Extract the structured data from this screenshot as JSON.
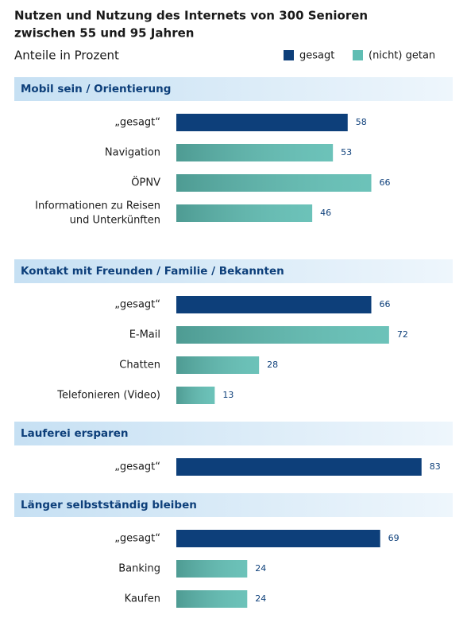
{
  "chart_data": {
    "type": "bar",
    "title": [
      "Nutzen und Nutzung des Internets von 300 Senioren",
      "zwischen 55 und 95 Jahren"
    ],
    "subtitle": "Anteile in Prozent",
    "legend": [
      {
        "name": "gesagt",
        "color": "#0d3f7a"
      },
      {
        "name": "(nicht) getan",
        "color": "#5fbdb3"
      }
    ],
    "groups": [
      {
        "name": "Mobil sein / Orientierung",
        "items": [
          {
            "label": [
              "„gesagt“"
            ],
            "value": 58,
            "color": "#0d3f7a"
          },
          {
            "label": [
              "Navigation"
            ],
            "value": 53,
            "color": "#5fbdb3"
          },
          {
            "label": [
              "ÖPNV"
            ],
            "value": 66,
            "color": "#5fbdb3"
          },
          {
            "label": [
              "Informationen zu Reisen",
              "und Unterkünften"
            ],
            "value": 46,
            "color": "#5fbdb3"
          }
        ]
      },
      {
        "name": "Kontakt mit Freunden / Familie / Bekannten",
        "items": [
          {
            "label": [
              "„gesagt“"
            ],
            "value": 66,
            "color": "#0d3f7a"
          },
          {
            "label": [
              "E-Mail"
            ],
            "value": 72,
            "color": "#5fbdb3"
          },
          {
            "label": [
              "Chatten"
            ],
            "value": 28,
            "color": "#5fbdb3"
          },
          {
            "label": [
              "Telefonieren (Video)"
            ],
            "value": 13,
            "color": "#5fbdb3"
          }
        ]
      },
      {
        "name": "Lauferei ersparen",
        "items": [
          {
            "label": [
              "„gesagt“"
            ],
            "value": 83,
            "color": "#0d3f7a"
          }
        ]
      },
      {
        "name": "Länger selbstständig bleiben",
        "items": [
          {
            "label": [
              "„gesagt“"
            ],
            "value": 69,
            "color": "#0d3f7a"
          },
          {
            "label": [
              "Banking"
            ],
            "value": 24,
            "color": "#5fbdb3"
          },
          {
            "label": [
              "Kaufen"
            ],
            "value": 24,
            "color": "#5fbdb3"
          }
        ]
      }
    ]
  }
}
